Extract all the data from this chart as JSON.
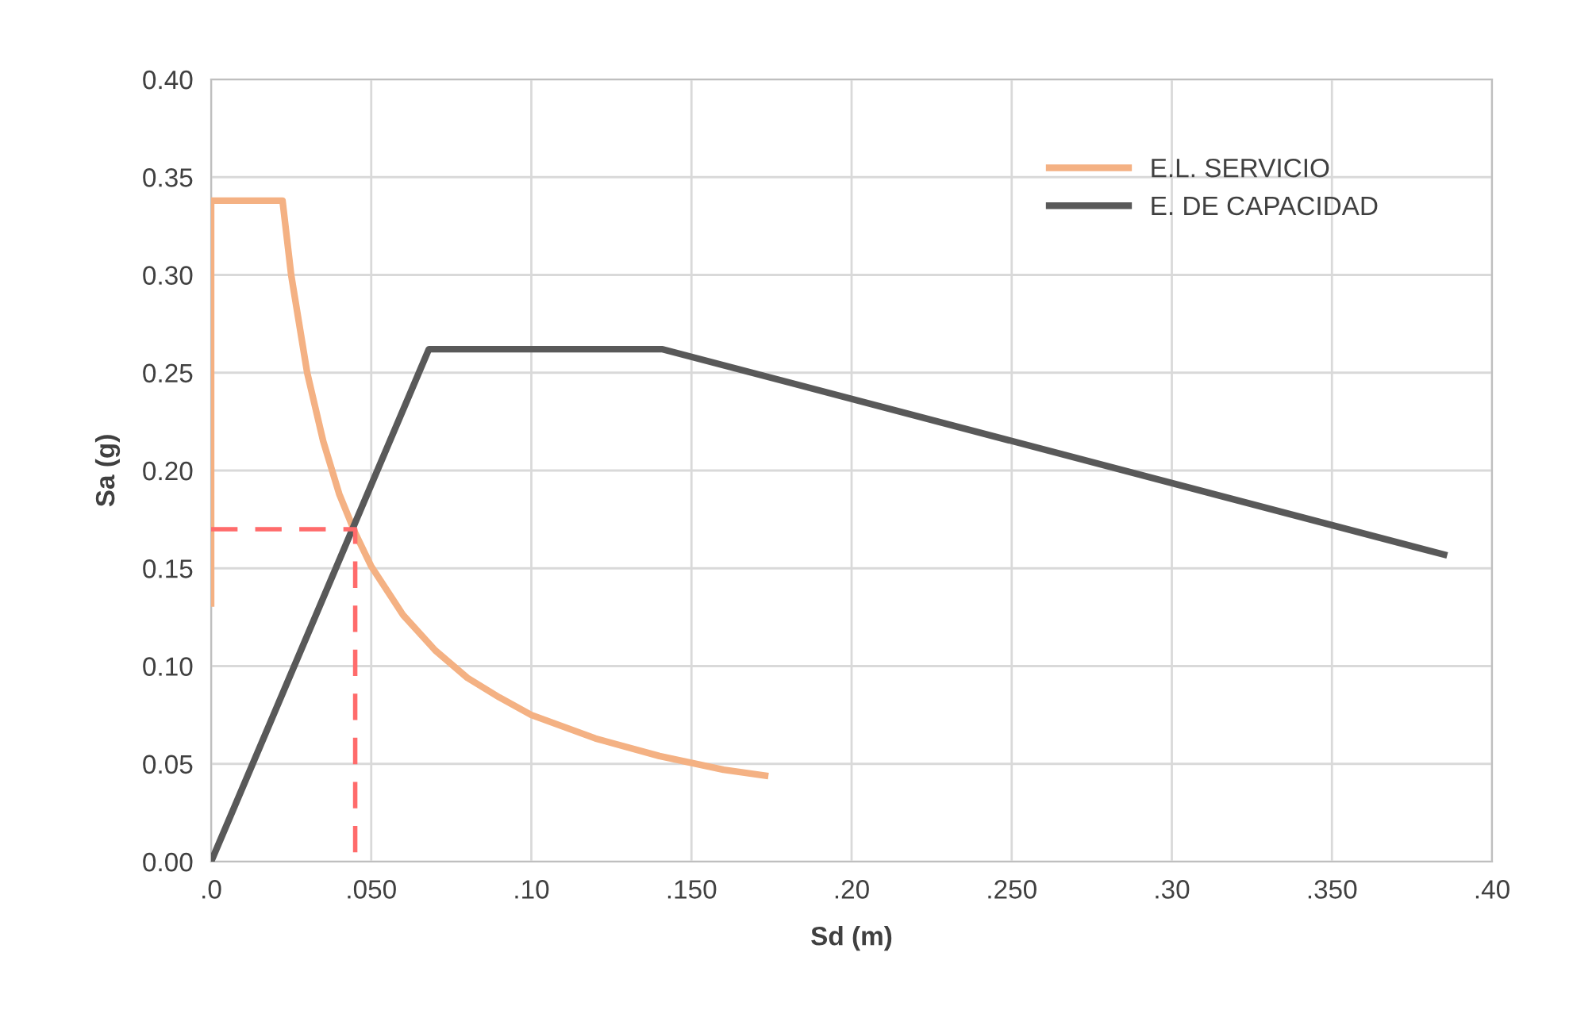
{
  "chart_data": {
    "type": "line",
    "xlabel": "Sd (m)",
    "ylabel": "Sa (g)",
    "xlim": [
      0,
      0.4
    ],
    "ylim": [
      0,
      0.4
    ],
    "xticks": [
      {
        "value": 0,
        "label": ".0"
      },
      {
        "value": 0.05,
        "label": ".050"
      },
      {
        "value": 0.1,
        "label": ".10"
      },
      {
        "value": 0.15,
        "label": ".150"
      },
      {
        "value": 0.2,
        "label": ".20"
      },
      {
        "value": 0.25,
        "label": ".250"
      },
      {
        "value": 0.3,
        "label": ".30"
      },
      {
        "value": 0.35,
        "label": ".350"
      },
      {
        "value": 0.4,
        "label": ".40"
      }
    ],
    "yticks": [
      {
        "value": 0,
        "label": "0.00"
      },
      {
        "value": 0.05,
        "label": "0.05"
      },
      {
        "value": 0.1,
        "label": "0.10"
      },
      {
        "value": 0.15,
        "label": "0.15"
      },
      {
        "value": 0.2,
        "label": "0.20"
      },
      {
        "value": 0.25,
        "label": "0.25"
      },
      {
        "value": 0.3,
        "label": "0.30"
      },
      {
        "value": 0.35,
        "label": "0.35"
      },
      {
        "value": 0.4,
        "label": "0.40"
      }
    ],
    "grid": true,
    "legend": "top right",
    "series": [
      {
        "name": "E.L. SERVICIO",
        "color": "#f4b183",
        "x": [
          0,
          0,
          0.0223,
          0.025,
          0.03,
          0.035,
          0.04,
          0.045,
          0.05,
          0.06,
          0.07,
          0.08,
          0.09,
          0.1,
          0.12,
          0.14,
          0.16,
          0.173
        ],
        "values": [
          0.132,
          0.338,
          0.338,
          0.3,
          0.25,
          0.215,
          0.188,
          0.168,
          0.151,
          0.126,
          0.108,
          0.094,
          0.084,
          0.075,
          0.063,
          0.054,
          0.047,
          0.044
        ]
      },
      {
        "name": "E. DE CAPACIDAD",
        "color": "#595959",
        "x": [
          0,
          0.068,
          0.141,
          0.385
        ],
        "values": [
          0,
          0.262,
          0.262,
          0.157
        ]
      },
      {
        "color": "#ff6b6b",
        "line_style": "dashed",
        "x": [
          0,
          0.045,
          0.045
        ],
        "values": [
          0.17,
          0.17,
          0
        ]
      }
    ]
  }
}
